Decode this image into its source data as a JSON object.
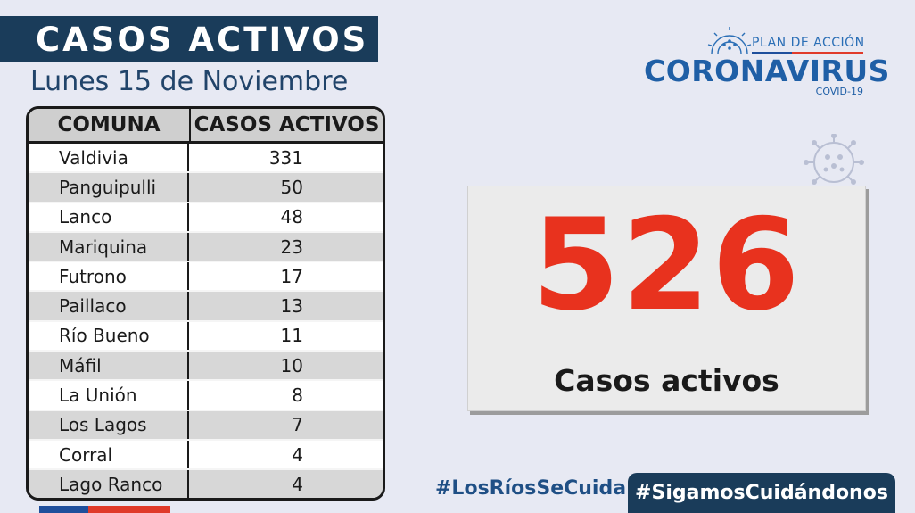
{
  "header": {
    "title": "CASOS ACTIVOS",
    "date": "Lunes 15 de Noviembre"
  },
  "table": {
    "columns": [
      "COMUNA",
      "CASOS ACTIVOS"
    ],
    "rows": [
      {
        "comuna": "Valdivia",
        "casos": "331"
      },
      {
        "comuna": "Panguipulli",
        "casos": "50"
      },
      {
        "comuna": "Lanco",
        "casos": "48"
      },
      {
        "comuna": "Mariquina",
        "casos": "23"
      },
      {
        "comuna": "Futrono",
        "casos": "17"
      },
      {
        "comuna": "Paillaco",
        "casos": "13"
      },
      {
        "comuna": "Río Bueno",
        "casos": "11"
      },
      {
        "comuna": "Máfil",
        "casos": "10"
      },
      {
        "comuna": "La Unión",
        "casos": "8"
      },
      {
        "comuna": "Los Lagos",
        "casos": "7"
      },
      {
        "comuna": "Corral",
        "casos": "4"
      },
      {
        "comuna": "Lago Ranco",
        "casos": "4"
      }
    ]
  },
  "logo": {
    "plan": "PLAN DE ACCIÓN",
    "main": "CORONAVIRUS",
    "sub": "COVID-19"
  },
  "summary": {
    "total": "526",
    "label": "Casos activos"
  },
  "footer": {
    "hashtag1": "#LosRíosSeCuida",
    "hashtag2": "#SigamosCuidándonos"
  },
  "icons": [
    "virus-icon"
  ],
  "colors": {
    "navy": "#1a3c5a",
    "accent_red": "#e8321e",
    "logo_blue": "#1f5fa6",
    "background": "#e7e9f3"
  }
}
